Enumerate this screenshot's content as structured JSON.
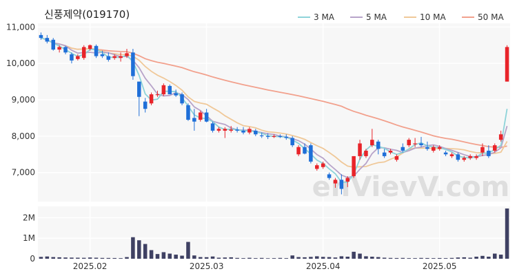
{
  "title": "신풍제약(019170)",
  "watermark": "enVievV.com",
  "chart_data": {
    "type": "candlestick",
    "title": "신풍제약(019170)",
    "x_tick_labels": [
      "2025.02",
      "2025.03",
      "2025.04",
      "2025.05"
    ],
    "x_tick_index": [
      8,
      27,
      46,
      65
    ],
    "price_axis": {
      "ticks": [
        7000,
        8000,
        9000,
        10000,
        11000
      ],
      "tick_labels": [
        "7,000",
        "8,000",
        "9,000",
        "10,000",
        "11,000"
      ],
      "ylim": [
        6200,
        11100
      ]
    },
    "volume_axis": {
      "ticks": [
        0,
        1000000,
        2000000
      ],
      "tick_labels": [
        "0",
        "1M",
        "2M"
      ],
      "ylim": [
        0,
        2550000
      ]
    },
    "up_color": "#e8242a",
    "down_color": "#1f6fd8",
    "legend": [
      {
        "name": "3 MA",
        "color": "#8dd3d9"
      },
      {
        "name": "5 MA",
        "color": "#b7a3c9"
      },
      {
        "name": "10 MA",
        "color": "#f0c898"
      },
      {
        "name": "50 MA",
        "color": "#f2a08c"
      }
    ],
    "candles": [
      [
        10780,
        10850,
        10650,
        10700
      ],
      [
        10700,
        10780,
        10550,
        10600
      ],
      [
        10650,
        10700,
        10350,
        10380
      ],
      [
        10380,
        10500,
        10300,
        10450
      ],
      [
        10450,
        10480,
        10250,
        10300
      ],
      [
        10250,
        10300,
        10000,
        10080
      ],
      [
        10120,
        10250,
        10080,
        10200
      ],
      [
        10150,
        10500,
        10100,
        10450
      ],
      [
        10400,
        10520,
        10350,
        10500
      ],
      [
        10480,
        10520,
        10150,
        10200
      ],
      [
        10250,
        10350,
        10150,
        10200
      ],
      [
        10200,
        10300,
        10050,
        10100
      ],
      [
        10150,
        10250,
        10100,
        10200
      ],
      [
        10150,
        10300,
        10050,
        10200
      ],
      [
        10200,
        10400,
        10150,
        10280
      ],
      [
        10300,
        10400,
        9550,
        9650
      ],
      [
        9500,
        9500,
        8550,
        9080
      ],
      [
        8950,
        9050,
        8650,
        8750
      ],
      [
        8900,
        9200,
        8850,
        9150
      ],
      [
        9150,
        9250,
        9080,
        9150
      ],
      [
        9150,
        9450,
        9100,
        9400
      ],
      [
        9380,
        9420,
        9150,
        9150
      ],
      [
        9180,
        9280,
        9080,
        9120
      ],
      [
        9150,
        9200,
        8850,
        8900
      ],
      [
        8850,
        8900,
        8420,
        8450
      ],
      [
        8500,
        8750,
        8150,
        8400
      ],
      [
        8450,
        8700,
        8400,
        8650
      ],
      [
        8650,
        8750,
        8380,
        8400
      ],
      [
        8350,
        8400,
        8100,
        8150
      ],
      [
        8150,
        8250,
        8100,
        8200
      ],
      [
        8150,
        8250,
        7950,
        8200
      ],
      [
        8150,
        8280,
        8100,
        8180
      ],
      [
        8180,
        8250,
        8100,
        8150
      ],
      [
        8150,
        8250,
        8050,
        8100
      ],
      [
        8100,
        8250,
        8050,
        8200
      ],
      [
        8150,
        8200,
        8000,
        8050
      ],
      [
        8020,
        8100,
        7950,
        8000
      ],
      [
        8000,
        8080,
        7920,
        7980
      ],
      [
        7980,
        8050,
        7950,
        8000
      ],
      [
        8000,
        8050,
        7950,
        7980
      ],
      [
        7980,
        8050,
        7900,
        7950
      ],
      [
        7950,
        8000,
        7700,
        7750
      ],
      [
        7500,
        7750,
        7450,
        7700
      ],
      [
        7700,
        7800,
        7500,
        7520
      ],
      [
        7750,
        7800,
        7250,
        7300
      ],
      [
        7100,
        7250,
        7050,
        7200
      ],
      [
        7150,
        7300,
        7100,
        7250
      ],
      [
        6950,
        7000,
        6800,
        6850
      ],
      [
        6700,
        6850,
        6580,
        6800
      ],
      [
        6800,
        6950,
        6400,
        6550
      ],
      [
        6750,
        6900,
        6600,
        6850
      ],
      [
        6900,
        7450,
        6850,
        7450
      ],
      [
        7450,
        7900,
        7350,
        7800
      ],
      [
        7450,
        7650,
        7400,
        7600
      ],
      [
        7750,
        8200,
        7700,
        7900
      ],
      [
        7850,
        7900,
        7500,
        7650
      ],
      [
        7550,
        7650,
        7400,
        7450
      ],
      [
        7550,
        7650,
        7500,
        7600
      ],
      [
        7350,
        7500,
        7300,
        7450
      ],
      [
        7700,
        7800,
        7550,
        7600
      ],
      [
        7750,
        7950,
        7700,
        7900
      ],
      [
        7800,
        7950,
        7700,
        7800
      ],
      [
        7800,
        7980,
        7700,
        7750
      ],
      [
        7700,
        7850,
        7600,
        7650
      ],
      [
        7600,
        7750,
        7550,
        7700
      ],
      [
        7650,
        7750,
        7600,
        7700
      ],
      [
        7550,
        7600,
        7450,
        7500
      ],
      [
        7450,
        7550,
        7400,
        7500
      ],
      [
        7500,
        7550,
        7300,
        7350
      ],
      [
        7350,
        7450,
        7300,
        7400
      ],
      [
        7400,
        7500,
        7350,
        7450
      ],
      [
        7400,
        7500,
        7350,
        7450
      ],
      [
        7550,
        7800,
        7450,
        7700
      ],
      [
        7600,
        7750,
        7400,
        7450
      ],
      [
        7600,
        7800,
        7550,
        7750
      ],
      [
        7900,
        8150,
        7850,
        8050
      ],
      [
        9500,
        10500,
        9500,
        10450
      ]
    ],
    "volume": [
      90000,
      110000,
      80000,
      70000,
      60000,
      55000,
      50000,
      45000,
      60000,
      50000,
      40000,
      38000,
      35000,
      30000,
      80000,
      1050000,
      900000,
      720000,
      420000,
      230000,
      320000,
      250000,
      200000,
      150000,
      820000,
      160000,
      80000,
      75000,
      110000,
      50000,
      60000,
      70000,
      40000,
      30000,
      45000,
      30000,
      40000,
      25000,
      30000,
      40000,
      30000,
      160000,
      80000,
      70000,
      90000,
      120000,
      90000,
      80000,
      60000,
      120000,
      100000,
      340000,
      250000,
      120000,
      100000,
      80000,
      50000,
      40000,
      35000,
      40000,
      30000,
      30000,
      40000,
      35000,
      30000,
      35000,
      30000,
      40000,
      60000,
      70000,
      50000,
      100000,
      140000,
      100000,
      250000,
      200000,
      2450000
    ]
  }
}
